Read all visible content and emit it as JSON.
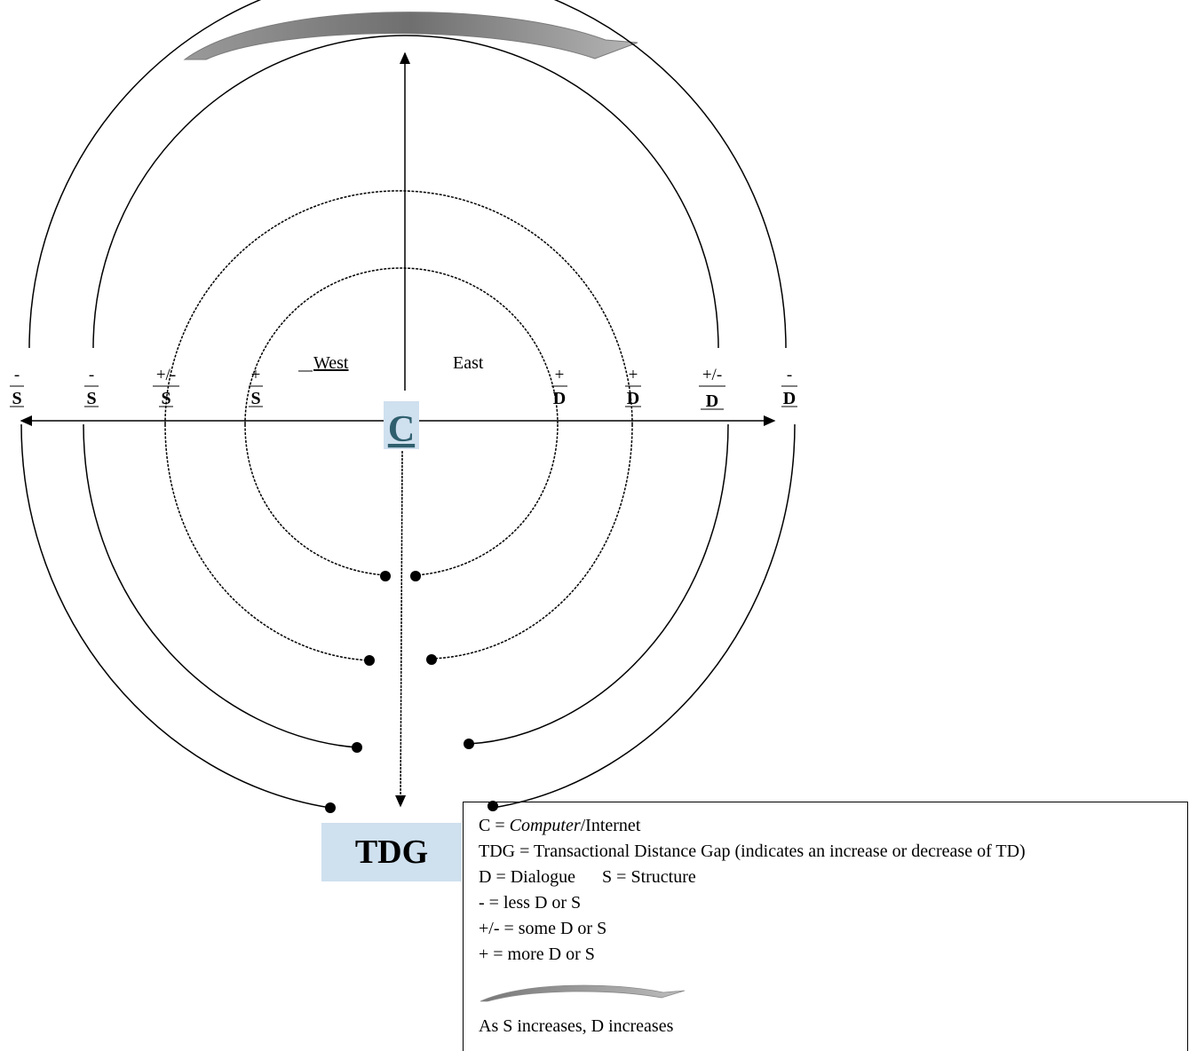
{
  "center_label": "C",
  "tdg_label": "TDG",
  "directions": {
    "west": "West",
    "east": "East"
  },
  "axis_labels": {
    "west": [
      {
        "sign": "-",
        "letter": "S"
      },
      {
        "sign": "-",
        "letter": "S"
      },
      {
        "sign": "+/-",
        "letter": "S"
      },
      {
        "sign": "+",
        "letter": "S"
      }
    ],
    "east": [
      {
        "sign": "+",
        "letter": "D"
      },
      {
        "sign": "+",
        "letter": "D"
      },
      {
        "sign": "+/-",
        "letter": "D"
      },
      {
        "sign": "-",
        "letter": "D"
      }
    ]
  },
  "legend": {
    "c_prefix": "C = ",
    "c_italic": "Computer",
    "c_suffix": "/Internet",
    "tdg": "TDG = Transactional Distance Gap (indicates an increase or decrease of TD)",
    "d": "D = Dialogue",
    "s": "S = Structure",
    "less": "-  = less D or S",
    "some": "+/- = some D or S",
    "more": "+ = more D or S",
    "arrow_note": "As S increases, D increases"
  },
  "colors": {
    "arrow_gray": "#8a8a8a",
    "tdg_fill": "#cfe0ef",
    "center_fill": "#cfe0ef",
    "center_text": "#2f5f6e"
  }
}
